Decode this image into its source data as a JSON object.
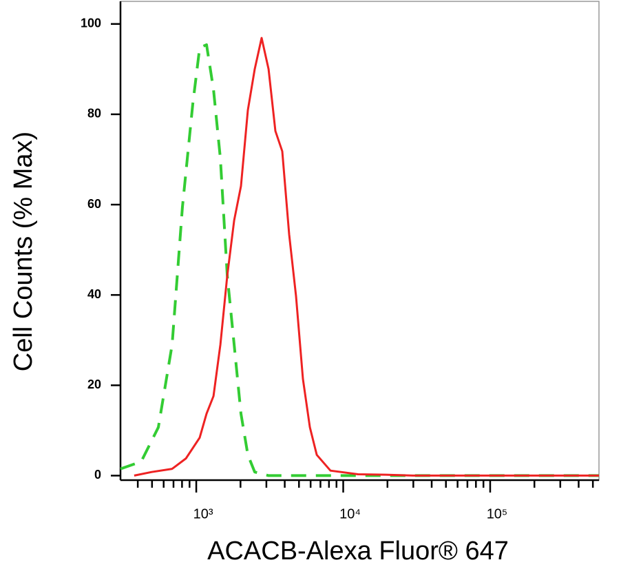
{
  "chart_data": {
    "type": "line",
    "xlabel": "ACACB-Alexa Fluor® 647",
    "ylabel": "Cell Counts (% Max)",
    "xscale": "log",
    "xlim": [
      305,
      550000
    ],
    "ylim": [
      -1,
      105
    ],
    "xticks": [
      {
        "value": 1000,
        "label": "10³"
      },
      {
        "value": 10000,
        "label": "10⁴"
      },
      {
        "value": 100000,
        "label": "10⁵"
      }
    ],
    "xminor_ticks": [
      400,
      500,
      600,
      700,
      800,
      900,
      2000,
      3000,
      4000,
      5000,
      6000,
      7000,
      8000,
      9000,
      20000,
      30000,
      40000,
      50000,
      60000,
      70000,
      80000,
      90000,
      200000,
      300000,
      400000,
      500000
    ],
    "yticks": [
      0,
      20,
      40,
      60,
      80,
      100
    ],
    "series": [
      {
        "color": "#33cc33",
        "dash": true,
        "x": [
          305,
          422,
          552,
          685,
          805,
          948,
          1055,
          1175,
          1310,
          1459,
          1625,
          1811,
          2015,
          2245,
          2500,
          3105,
          4285,
          5930,
          10160,
          29850,
          550000
        ],
        "values": [
          1.5,
          3.1,
          10.7,
          29,
          59.5,
          82.4,
          94.7,
          95.4,
          85.5,
          70.2,
          44.3,
          29,
          13.7,
          4.6,
          0.8,
          0,
          0,
          0,
          0,
          0,
          0
        ]
      },
      {
        "color": "#ee2222",
        "dash": false,
        "x": [
          378,
          497,
          685,
          851,
          1055,
          1175,
          1310,
          1459,
          1625,
          1811,
          2015,
          2245,
          2500,
          2785,
          3105,
          3456,
          3850,
          4285,
          4775,
          5320,
          5930,
          6605,
          8185,
          12610,
          19400,
          29850,
          550000
        ],
        "values": [
          0,
          0.8,
          1.5,
          3.8,
          8.4,
          13.7,
          17.6,
          29,
          44.3,
          56.5,
          64.1,
          80.9,
          90,
          96.9,
          90,
          76.3,
          71.8,
          53.4,
          39.7,
          21.4,
          10.7,
          4.6,
          1.1,
          0.3,
          0.2,
          0,
          0
        ]
      }
    ]
  }
}
